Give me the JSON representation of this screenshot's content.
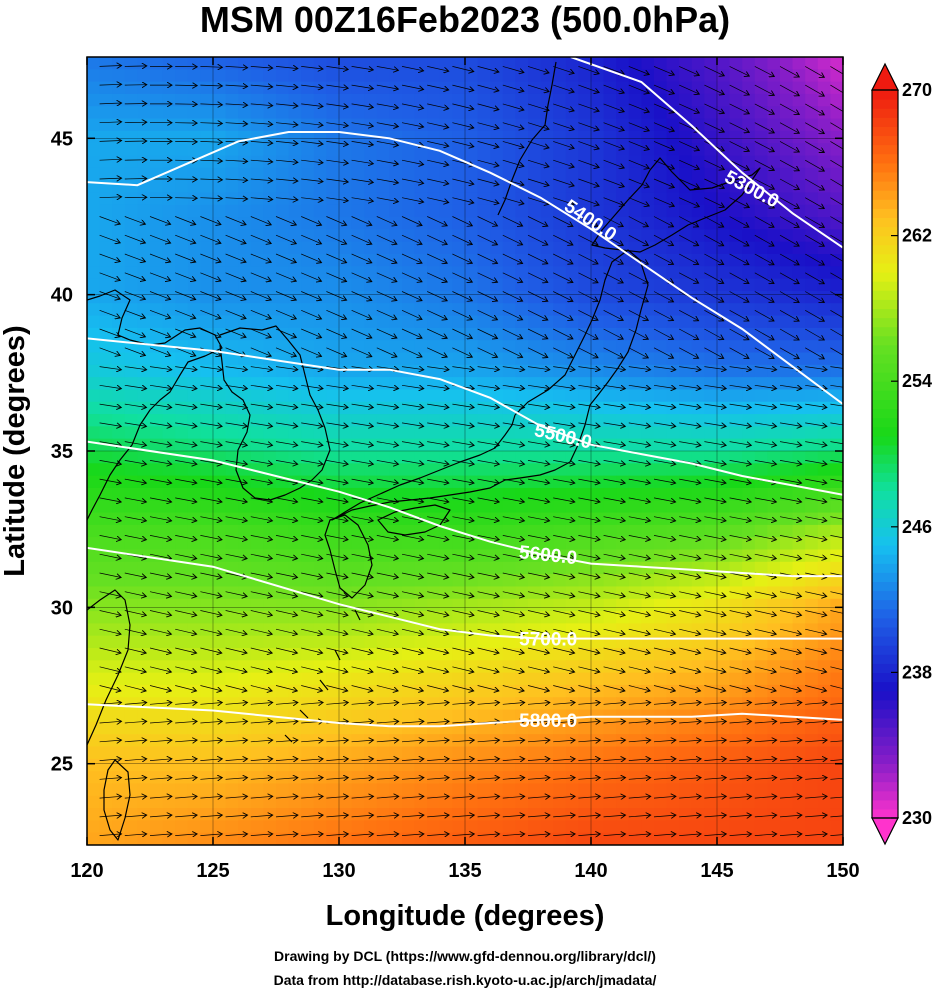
{
  "title": "MSM 00Z16Feb2023 (500.0hPa)",
  "xlabel": "Longitude (degrees)",
  "ylabel": "Latitude  (degrees)",
  "credits": [
    "Drawing by DCL (https://www.gfd-dennou.org/library/dcl/)",
    "Data from http://database.rish.kyoto-u.ac.jp/arch/jmadata/"
  ],
  "chart_data": {
    "type": "heatmap",
    "title": "MSM 00Z16Feb2023 (500.0hPa)",
    "xlabel": "Longitude (degrees)",
    "ylabel": "Latitude  (degrees)",
    "xlim": [
      120,
      150
    ],
    "ylim": [
      22.4,
      47.6
    ],
    "xticks": [
      {
        "value": 120,
        "label": "120"
      },
      {
        "value": 125,
        "label": "125"
      },
      {
        "value": 130,
        "label": "130"
      },
      {
        "value": 135,
        "label": "135"
      },
      {
        "value": 140,
        "label": "140"
      },
      {
        "value": 145,
        "label": "145"
      },
      {
        "value": 150,
        "label": "150"
      }
    ],
    "yticks": [
      {
        "value": 25,
        "label": "25"
      },
      {
        "value": 30,
        "label": "30"
      },
      {
        "value": 35,
        "label": "35"
      },
      {
        "value": 40,
        "label": "40"
      },
      {
        "value": 45,
        "label": "45"
      }
    ],
    "grid": true,
    "colorbar": {
      "min": 230,
      "max": 270,
      "ticks": [
        {
          "value": 270,
          "label": "270"
        },
        {
          "value": 262,
          "label": "262"
        },
        {
          "value": 254,
          "label": "254"
        },
        {
          "value": 246,
          "label": "246"
        },
        {
          "value": 238,
          "label": "238"
        },
        {
          "value": 230,
          "label": "230"
        }
      ],
      "stops": [
        {
          "value": 230,
          "color": "#ff33cc"
        },
        {
          "value": 233,
          "color": "#8a1ec8"
        },
        {
          "value": 237,
          "color": "#1a10c8"
        },
        {
          "value": 241,
          "color": "#1f5fe6"
        },
        {
          "value": 245,
          "color": "#16c0f0"
        },
        {
          "value": 248,
          "color": "#10e0a0"
        },
        {
          "value": 251,
          "color": "#18d818"
        },
        {
          "value": 256,
          "color": "#66e022"
        },
        {
          "value": 260,
          "color": "#e6f014"
        },
        {
          "value": 263,
          "color": "#ffc020"
        },
        {
          "value": 266,
          "color": "#ff7010"
        },
        {
          "value": 270,
          "color": "#ee1a10"
        }
      ]
    },
    "temperature_field_K": {
      "lon": [
        120,
        125,
        130,
        135,
        140,
        145,
        150
      ],
      "lat": [
        22.4,
        25,
        27.5,
        30,
        32.5,
        35,
        37.5,
        40,
        42.5,
        45,
        47.6
      ],
      "values": [
        [
          264,
          265,
          266,
          267,
          268,
          268,
          268
        ],
        [
          263,
          263,
          264,
          265,
          266,
          267,
          268
        ],
        [
          260,
          260,
          261,
          262,
          263,
          264,
          266
        ],
        [
          257,
          257,
          257,
          258,
          259,
          261,
          264
        ],
        [
          254,
          254,
          253,
          253,
          254,
          255,
          258
        ],
        [
          250,
          249,
          248,
          248,
          248,
          248,
          249
        ],
        [
          246,
          245,
          244,
          244,
          243,
          242,
          242
        ],
        [
          244,
          243,
          243,
          242,
          240,
          239,
          238
        ],
        [
          244,
          243,
          242,
          241,
          239,
          237,
          235
        ],
        [
          244,
          244,
          242,
          241,
          239,
          236,
          233
        ],
        [
          242,
          241,
          240,
          240,
          238,
          235,
          231
        ]
      ]
    },
    "height_contours_m": [
      {
        "level": 5300,
        "label": "5300.0",
        "lon": [
          139.2,
          142,
          144,
          146,
          148,
          150
        ],
        "lat": [
          47.6,
          46.8,
          45.4,
          43.9,
          42.6,
          41.5
        ]
      },
      {
        "level": 5400,
        "label": "5400.0",
        "lon": [
          120,
          122,
          124,
          126,
          128,
          130,
          132,
          134,
          136,
          138,
          140,
          142,
          144,
          146,
          148,
          150
        ],
        "lat": [
          43.6,
          43.5,
          44.2,
          44.9,
          45.2,
          45.2,
          45.0,
          44.6,
          43.9,
          43.1,
          42.1,
          41.0,
          39.9,
          38.9,
          37.7,
          36.5
        ]
      },
      {
        "level": 5500,
        "label": "5500.0",
        "lon": [
          120,
          125,
          130,
          132,
          134,
          136,
          138,
          140,
          142,
          144,
          146,
          148,
          150
        ],
        "lat": [
          38.6,
          38.2,
          37.6,
          37.6,
          37.3,
          36.7,
          35.8,
          35.2,
          34.9,
          34.6,
          34.2,
          33.9,
          33.6
        ]
      },
      {
        "level": 5600,
        "label": "5600.0",
        "lon": [
          120,
          125,
          130,
          132,
          134,
          136,
          138,
          140,
          142,
          144,
          146,
          148,
          150
        ],
        "lat": [
          35.3,
          34.7,
          33.7,
          33.2,
          32.6,
          32.1,
          31.7,
          31.4,
          31.3,
          31.2,
          31.1,
          31.0,
          31.0
        ]
      },
      {
        "level": 5700,
        "label": "5700.0",
        "lon": [
          120,
          125,
          130,
          132,
          134,
          136,
          138,
          140,
          142,
          144,
          146,
          148,
          150
        ],
        "lat": [
          31.9,
          31.3,
          30.1,
          29.7,
          29.3,
          29.1,
          29.0,
          29.0,
          29.0,
          29.0,
          29.0,
          29.0,
          29.0
        ]
      },
      {
        "level": 5800,
        "label": "5800.0",
        "lon": [
          120,
          125,
          130,
          132,
          134,
          136,
          138,
          140,
          142,
          144,
          146,
          148,
          150
        ],
        "lat": [
          26.9,
          26.7,
          26.3,
          26.2,
          26.2,
          26.3,
          26.4,
          26.5,
          26.5,
          26.5,
          26.6,
          26.5,
          26.4
        ]
      }
    ]
  }
}
